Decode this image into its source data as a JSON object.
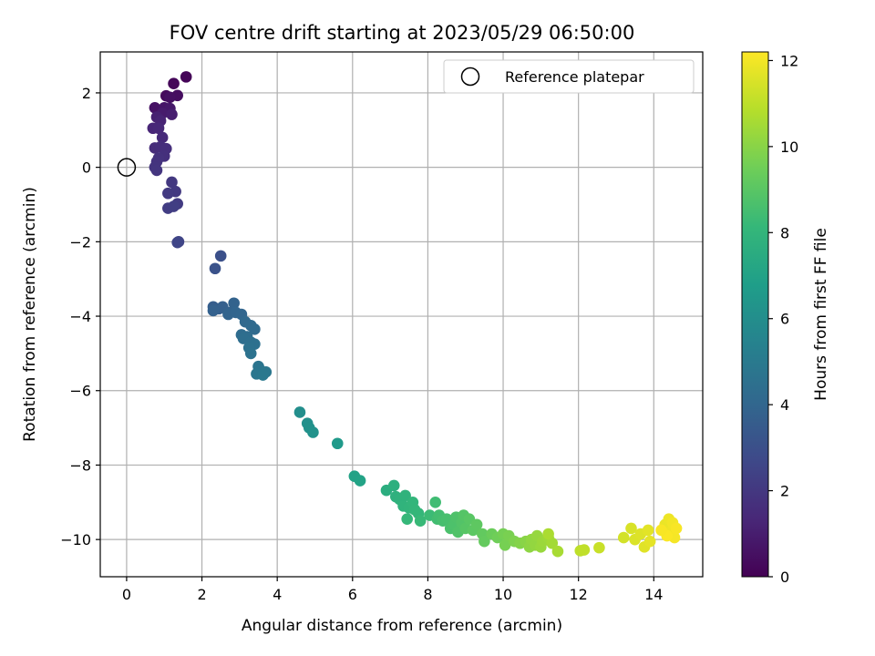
{
  "chart_data": {
    "type": "scatter",
    "title": "FOV centre drift starting at 2023/05/29 06:50:00",
    "xlabel": "Angular distance from reference (arcmin)",
    "ylabel": "Rotation from reference (arcmin)",
    "xlim": [
      -0.7,
      15.3
    ],
    "ylim": [
      -11,
      3.1
    ],
    "xticks": [
      "0",
      "2",
      "4",
      "6",
      "8",
      "10",
      "12",
      "14"
    ],
    "yticks": [
      "2",
      "0",
      "−2",
      "−4",
      "−6",
      "−8",
      "−10"
    ],
    "grid": true,
    "legend": {
      "placement": "top-right",
      "entries": [
        "Reference platepar"
      ]
    },
    "colorbar": {
      "label": "Hours from first FF file",
      "range": [
        0,
        12.2
      ],
      "ticks": [
        "0",
        "2",
        "4",
        "6",
        "8",
        "10",
        "12"
      ],
      "colormap": "viridis"
    },
    "reference_point": {
      "x": 0,
      "y": 0
    },
    "series": [
      {
        "points": [
          [
            1.58,
            2.43,
            0.1
          ],
          [
            1.25,
            2.25,
            0.2
          ],
          [
            1.05,
            1.92,
            0.3
          ],
          [
            1.35,
            1.93,
            0.4
          ],
          [
            1.15,
            1.88,
            0.5
          ],
          [
            0.75,
            1.6,
            0.6
          ],
          [
            1.0,
            1.6,
            0.7
          ],
          [
            1.15,
            1.58,
            0.8
          ],
          [
            0.95,
            1.45,
            0.9
          ],
          [
            1.2,
            1.42,
            1.0
          ],
          [
            0.8,
            1.35,
            1.1
          ],
          [
            0.9,
            1.25,
            1.2
          ],
          [
            0.7,
            1.05,
            1.3
          ],
          [
            0.85,
            1.05,
            1.35
          ],
          [
            0.95,
            0.8,
            1.45
          ],
          [
            0.75,
            0.52,
            1.55
          ],
          [
            0.9,
            0.55,
            1.6
          ],
          [
            1.05,
            0.5,
            1.65
          ],
          [
            1.0,
            0.3,
            1.7
          ],
          [
            0.85,
            0.25,
            1.75
          ],
          [
            0.8,
            0.15,
            1.8
          ],
          [
            0.75,
            0.0,
            1.85
          ],
          [
            0.8,
            -0.08,
            1.9
          ],
          [
            1.2,
            -0.4,
            2.0
          ],
          [
            1.3,
            -0.65,
            2.05
          ],
          [
            1.1,
            -0.7,
            2.1
          ],
          [
            1.35,
            -0.98,
            2.15
          ],
          [
            1.1,
            -1.1,
            2.2
          ],
          [
            1.25,
            -1.05,
            2.25
          ],
          [
            1.38,
            -2.0,
            2.5
          ],
          [
            1.35,
            -2.02,
            2.55
          ],
          [
            2.5,
            -2.38,
            3.0
          ],
          [
            2.35,
            -2.72,
            3.1
          ],
          [
            2.3,
            -3.75,
            3.6
          ],
          [
            2.45,
            -3.8,
            3.65
          ],
          [
            2.55,
            -3.75,
            3.7
          ],
          [
            2.3,
            -3.85,
            3.75
          ],
          [
            2.7,
            -3.9,
            3.8
          ],
          [
            2.85,
            -3.65,
            3.85
          ],
          [
            2.7,
            -3.95,
            3.9
          ],
          [
            2.9,
            -3.9,
            3.95
          ],
          [
            3.05,
            -3.95,
            4.0
          ],
          [
            3.15,
            -4.15,
            4.1
          ],
          [
            3.3,
            -4.25,
            4.15
          ],
          [
            3.4,
            -4.35,
            4.2
          ],
          [
            3.05,
            -4.5,
            4.3
          ],
          [
            3.2,
            -4.55,
            4.35
          ],
          [
            3.1,
            -4.6,
            4.4
          ],
          [
            3.3,
            -4.7,
            4.45
          ],
          [
            3.4,
            -4.75,
            4.5
          ],
          [
            3.25,
            -4.85,
            4.55
          ],
          [
            3.3,
            -5.0,
            4.6
          ],
          [
            3.5,
            -5.35,
            4.7
          ],
          [
            3.55,
            -5.45,
            4.75
          ],
          [
            3.45,
            -5.55,
            4.8
          ],
          [
            3.7,
            -5.5,
            4.85
          ],
          [
            3.62,
            -5.58,
            4.9
          ],
          [
            4.6,
            -6.58,
            6.0
          ],
          [
            4.8,
            -6.88,
            6.1
          ],
          [
            4.85,
            -7.0,
            6.15
          ],
          [
            4.95,
            -7.12,
            6.2
          ],
          [
            5.6,
            -7.42,
            6.6
          ],
          [
            6.05,
            -8.3,
            7.0
          ],
          [
            6.2,
            -8.42,
            7.05
          ],
          [
            6.9,
            -8.68,
            7.6
          ],
          [
            7.1,
            -8.55,
            7.7
          ],
          [
            7.15,
            -8.85,
            7.75
          ],
          [
            7.25,
            -8.92,
            7.8
          ],
          [
            7.4,
            -8.82,
            7.85
          ],
          [
            7.35,
            -9.1,
            7.9
          ],
          [
            7.5,
            -9.15,
            7.95
          ],
          [
            7.6,
            -9.0,
            8.0
          ],
          [
            7.65,
            -9.2,
            8.05
          ],
          [
            7.75,
            -9.3,
            8.1
          ],
          [
            7.45,
            -9.45,
            8.15
          ],
          [
            7.8,
            -9.5,
            8.2
          ],
          [
            8.05,
            -9.35,
            8.3
          ],
          [
            8.2,
            -9.0,
            8.4
          ],
          [
            8.25,
            -9.45,
            8.45
          ],
          [
            8.3,
            -9.35,
            8.5
          ],
          [
            8.4,
            -9.5,
            8.55
          ],
          [
            8.5,
            -9.45,
            8.6
          ],
          [
            8.6,
            -9.7,
            8.65
          ],
          [
            8.7,
            -9.6,
            8.7
          ],
          [
            8.75,
            -9.4,
            8.75
          ],
          [
            8.8,
            -9.8,
            8.8
          ],
          [
            8.9,
            -9.55,
            8.85
          ],
          [
            8.95,
            -9.35,
            8.9
          ],
          [
            9.0,
            -9.7,
            8.95
          ],
          [
            9.1,
            -9.45,
            9.0
          ],
          [
            9.2,
            -9.75,
            9.05
          ],
          [
            9.3,
            -9.6,
            9.1
          ],
          [
            9.45,
            -9.85,
            9.2
          ],
          [
            9.5,
            -10.05,
            9.25
          ],
          [
            9.7,
            -9.85,
            9.4
          ],
          [
            9.85,
            -9.95,
            9.5
          ],
          [
            10.0,
            -9.85,
            9.6
          ],
          [
            10.05,
            -10.15,
            9.65
          ],
          [
            10.15,
            -9.9,
            9.7
          ],
          [
            10.3,
            -10.05,
            9.8
          ],
          [
            10.45,
            -10.1,
            9.9
          ],
          [
            10.6,
            -10.05,
            10.0
          ],
          [
            10.7,
            -10.2,
            10.1
          ],
          [
            10.75,
            -10.0,
            10.15
          ],
          [
            10.85,
            -10.15,
            10.2
          ],
          [
            10.9,
            -9.9,
            10.25
          ],
          [
            11.0,
            -10.2,
            10.3
          ],
          [
            11.05,
            -10.05,
            10.35
          ],
          [
            11.2,
            -9.95,
            10.4
          ],
          [
            11.3,
            -10.1,
            10.5
          ],
          [
            11.45,
            -10.32,
            10.6
          ],
          [
            11.2,
            -9.85,
            10.65
          ],
          [
            12.05,
            -10.3,
            11.0
          ],
          [
            12.15,
            -10.28,
            11.05
          ],
          [
            12.55,
            -10.22,
            11.2
          ],
          [
            13.2,
            -9.95,
            11.4
          ],
          [
            13.4,
            -9.7,
            11.5
          ],
          [
            13.5,
            -10.0,
            11.55
          ],
          [
            13.65,
            -9.85,
            11.6
          ],
          [
            13.75,
            -10.2,
            11.65
          ],
          [
            13.85,
            -9.75,
            11.7
          ],
          [
            13.9,
            -10.05,
            11.75
          ],
          [
            14.3,
            -9.6,
            11.85
          ],
          [
            14.4,
            -9.45,
            11.9
          ],
          [
            14.45,
            -9.8,
            11.95
          ],
          [
            14.5,
            -9.55,
            12.0
          ],
          [
            14.55,
            -9.95,
            12.05
          ],
          [
            14.6,
            -9.7,
            12.1
          ],
          [
            14.35,
            -9.9,
            12.15
          ],
          [
            14.2,
            -9.75,
            12.1
          ]
        ]
      }
    ]
  }
}
